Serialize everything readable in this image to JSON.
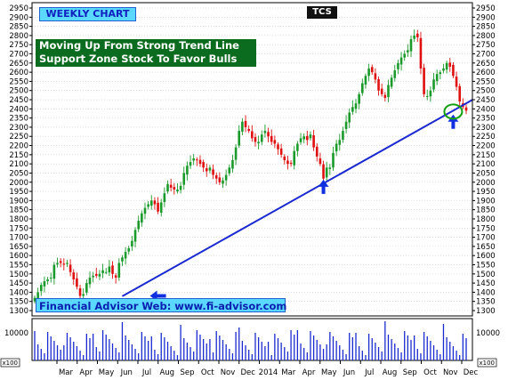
{
  "title": "WEEKLY CHART",
  "ticker": "TCS",
  "annotation": {
    "line1": "Moving Up From Strong Trend Line",
    "line2": "Support Zone Stock To Favor Bulls"
  },
  "website": "Financial Advisor Web: www.fi-advisor.com",
  "chart_data": {
    "type": "candlestick",
    "ylim": [
      1300,
      2950
    ],
    "y_ticks": [
      1300,
      1350,
      1400,
      1450,
      1500,
      1550,
      1600,
      1650,
      1700,
      1750,
      1800,
      1850,
      1900,
      1950,
      2000,
      2050,
      2100,
      2150,
      2200,
      2250,
      2300,
      2350,
      2400,
      2450,
      2500,
      2550,
      2600,
      2650,
      2700,
      2750,
      2800,
      2850,
      2900,
      2950
    ],
    "x_ticks": [
      "Mar",
      "Apr",
      "May",
      "Jun",
      "Jul",
      "Aug",
      "Sep",
      "Oct",
      "Nov",
      "Dec",
      "2014",
      "Mar",
      "Apr",
      "May",
      "Jun",
      "Jul",
      "Aug",
      "Sep",
      "Oct",
      "Nov",
      "Dec"
    ],
    "volume_axis_label": "10000",
    "volume_unit_label": "x100",
    "closes": [
      1370,
      1400,
      1440,
      1460,
      1470,
      1480,
      1550,
      1560,
      1560,
      1550,
      1560,
      1510,
      1470,
      1430,
      1380,
      1390,
      1450,
      1480,
      1490,
      1490,
      1500,
      1520,
      1510,
      1540,
      1500,
      1480,
      1560,
      1590,
      1620,
      1640,
      1680,
      1740,
      1790,
      1830,
      1860,
      1880,
      1900,
      1880,
      1840,
      1890,
      1940,
      1990,
      1970,
      1960,
      1960,
      1980,
      2050,
      2090,
      2110,
      2130,
      2120,
      2100,
      2080,
      2060,
      2080,
      2040,
      2020,
      2000,
      2010,
      2040,
      2080,
      2120,
      2190,
      2280,
      2330,
      2300,
      2280,
      2240,
      2220,
      2220,
      2260,
      2280,
      2250,
      2220,
      2210,
      2180,
      2150,
      2120,
      2100,
      2100,
      2170,
      2210,
      2240,
      2250,
      2230,
      2260,
      2190,
      2140,
      2100,
      2020,
      2080,
      2080,
      2160,
      2210,
      2230,
      2280,
      2330,
      2380,
      2410,
      2430,
      2480,
      2540,
      2580,
      2620,
      2600,
      2560,
      2500,
      2480,
      2460,
      2530,
      2570,
      2610,
      2650,
      2680,
      2700,
      2720,
      2780,
      2800,
      2790,
      2620,
      2480,
      2470,
      2500,
      2560,
      2590,
      2600,
      2620,
      2650,
      2630,
      2580,
      2520,
      2440,
      2410,
      2390
    ],
    "trend_line": {
      "from": {
        "index": 27,
        "value": 1378
      },
      "to": {
        "index": 135,
        "value": 2450
      }
    },
    "markers": [
      {
        "type": "arrow-left",
        "index": 38,
        "value": 1380
      },
      {
        "type": "arrow-up",
        "index": 89,
        "value": 1975
      },
      {
        "type": "arrow-up",
        "index": 129,
        "value": 2330
      },
      {
        "type": "circle",
        "index": 129,
        "value": 2385
      }
    ],
    "colors": {
      "up": "#1a9a2a",
      "down": "#e01010",
      "trend": "#1a2ad0",
      "volume": "#1a2ad0",
      "arrow": "#1030e0",
      "circle": "#10a010"
    }
  }
}
